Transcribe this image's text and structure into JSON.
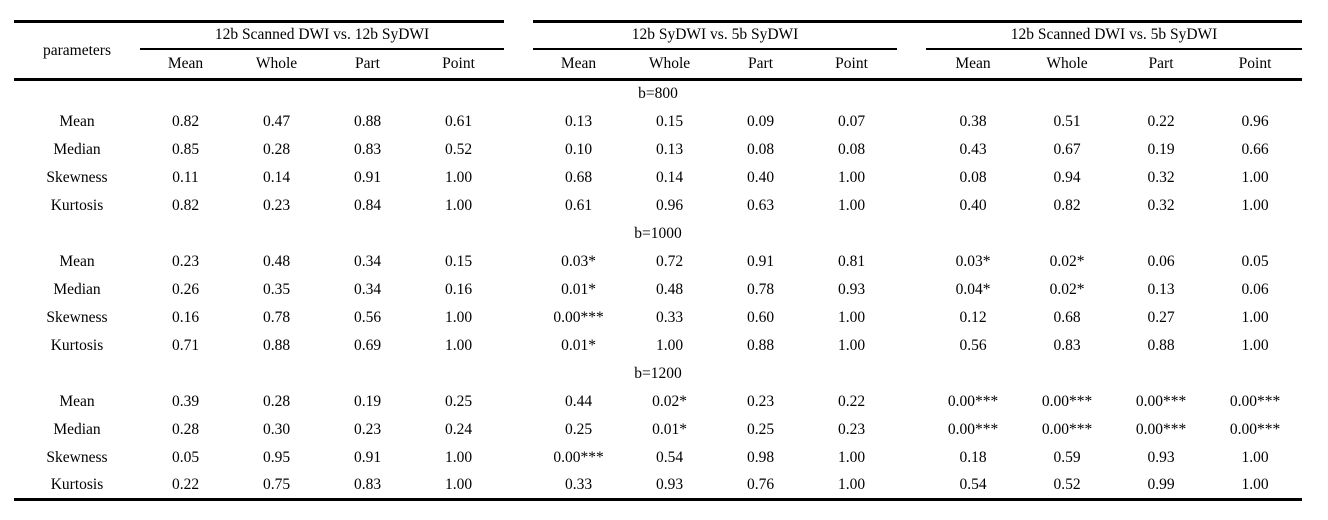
{
  "table": {
    "param_header": "parameters",
    "groups": [
      {
        "label": "12b Scanned DWI vs. 12b SyDWI",
        "columns": [
          "Mean",
          "Whole",
          "Part",
          "Point"
        ]
      },
      {
        "label": "12b SyDWI vs. 5b SyDWI",
        "columns": [
          "Mean",
          "Whole",
          "Part",
          "Point"
        ]
      },
      {
        "label": "12b Scanned DWI vs. 5b SyDWI",
        "columns": [
          "Mean",
          "Whole",
          "Part",
          "Point"
        ]
      }
    ],
    "sections": [
      {
        "label": "b=800",
        "rows": [
          {
            "param": "Mean",
            "values": [
              "0.82",
              "0.47",
              "0.88",
              "0.61",
              "0.13",
              "0.15",
              "0.09",
              "0.07",
              "0.38",
              "0.51",
              "0.22",
              "0.96"
            ]
          },
          {
            "param": "Median",
            "values": [
              "0.85",
              "0.28",
              "0.83",
              "0.52",
              "0.10",
              "0.13",
              "0.08",
              "0.08",
              "0.43",
              "0.67",
              "0.19",
              "0.66"
            ]
          },
          {
            "param": "Skewness",
            "values": [
              "0.11",
              "0.14",
              "0.91",
              "1.00",
              "0.68",
              "0.14",
              "0.40",
              "1.00",
              "0.08",
              "0.94",
              "0.32",
              "1.00"
            ]
          },
          {
            "param": "Kurtosis",
            "values": [
              "0.82",
              "0.23",
              "0.84",
              "1.00",
              "0.61",
              "0.96",
              "0.63",
              "1.00",
              "0.40",
              "0.82",
              "0.32",
              "1.00"
            ]
          }
        ]
      },
      {
        "label": "b=1000",
        "rows": [
          {
            "param": "Mean",
            "values": [
              "0.23",
              "0.48",
              "0.34",
              "0.15",
              "0.03*",
              "0.72",
              "0.91",
              "0.81",
              "0.03*",
              "0.02*",
              "0.06",
              "0.05"
            ]
          },
          {
            "param": "Median",
            "values": [
              "0.26",
              "0.35",
              "0.34",
              "0.16",
              "0.01*",
              "0.48",
              "0.78",
              "0.93",
              "0.04*",
              "0.02*",
              "0.13",
              "0.06"
            ]
          },
          {
            "param": "Skewness",
            "values": [
              "0.16",
              "0.78",
              "0.56",
              "1.00",
              "0.00***",
              "0.33",
              "0.60",
              "1.00",
              "0.12",
              "0.68",
              "0.27",
              "1.00"
            ]
          },
          {
            "param": "Kurtosis",
            "values": [
              "0.71",
              "0.88",
              "0.69",
              "1.00",
              "0.01*",
              "1.00",
              "0.88",
              "1.00",
              "0.56",
              "0.83",
              "0.88",
              "1.00"
            ]
          }
        ]
      },
      {
        "label": "b=1200",
        "rows": [
          {
            "param": "Mean",
            "values": [
              "0.39",
              "0.28",
              "0.19",
              "0.25",
              "0.44",
              "0.02*",
              "0.23",
              "0.22",
              "0.00***",
              "0.00***",
              "0.00***",
              "0.00***"
            ]
          },
          {
            "param": "Median",
            "values": [
              "0.28",
              "0.30",
              "0.23",
              "0.24",
              "0.25",
              "0.01*",
              "0.25",
              "0.23",
              "0.00***",
              "0.00***",
              "0.00***",
              "0.00***"
            ]
          },
          {
            "param": "Skewness",
            "values": [
              "0.05",
              "0.95",
              "0.91",
              "1.00",
              "0.00***",
              "0.54",
              "0.98",
              "1.00",
              "0.18",
              "0.59",
              "0.93",
              "1.00"
            ]
          },
          {
            "param": "Kurtosis",
            "values": [
              "0.22",
              "0.75",
              "0.83",
              "1.00",
              "0.33",
              "0.93",
              "0.76",
              "1.00",
              "0.54",
              "0.52",
              "0.99",
              "1.00"
            ]
          }
        ]
      }
    ]
  }
}
